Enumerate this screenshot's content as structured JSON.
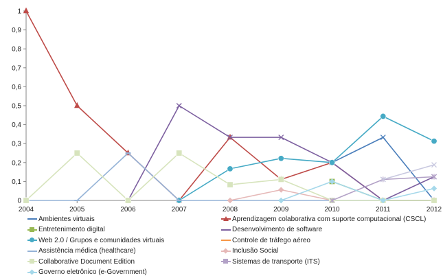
{
  "chart_data": {
    "type": "line",
    "x": [
      "2004",
      "2005",
      "2006",
      "2007",
      "2008",
      "2009",
      "2010",
      "2011",
      "2012"
    ],
    "ylim": [
      0,
      1
    ],
    "yticks": [
      "0",
      "0,1",
      "0,2",
      "0,3",
      "0,4",
      "0,5",
      "0,6",
      "0,7",
      "0,8",
      "0,9",
      "1"
    ],
    "grid": false,
    "legend_position": "bottom",
    "series": [
      {
        "name": "Ambientes virtuais",
        "color": "#4a7ebb",
        "marker": "x",
        "values": [
          null,
          null,
          null,
          null,
          null,
          null,
          0.2,
          0.333,
          0
        ]
      },
      {
        "name": "Aprendizagem colaborativa com suporte computacional (CSCL)",
        "color": "#be4b48",
        "marker": "triangle",
        "values": [
          1,
          0.5,
          0.25,
          0,
          0.333,
          0.111,
          0.2,
          0,
          0
        ]
      },
      {
        "name": "Entretenimento digital",
        "color": "#98b954",
        "marker": "square",
        "values": [
          null,
          null,
          null,
          null,
          null,
          null,
          0.1,
          0,
          0
        ]
      },
      {
        "name": "Desenvolvimento de software",
        "color": "#7d60a0",
        "marker": "x",
        "values": [
          null,
          null,
          0,
          0.5,
          0.333,
          0.333,
          0.2,
          0,
          0.125
        ]
      },
      {
        "name": "Web 2.0 / Grupos e comunidades virtuais",
        "color": "#46aac5",
        "marker": "circle",
        "values": [
          null,
          null,
          null,
          0,
          0.167,
          0.222,
          0.2,
          0.444,
          0.313
        ]
      },
      {
        "name": "Controle de tráfego aéreo",
        "color": "#f79646",
        "marker": "none",
        "values": [
          null,
          null,
          null,
          null,
          null,
          null,
          null,
          null,
          null
        ]
      },
      {
        "name": "Assistência médica (healthcare)",
        "color": "#95b3d7",
        "marker": "dash",
        "values": [
          0,
          0,
          0.25,
          0,
          0,
          0,
          0,
          0,
          0
        ]
      },
      {
        "name": "Inclusão Social",
        "color": "#e6b9b8",
        "marker": "diamond",
        "values": [
          null,
          null,
          null,
          null,
          0,
          0.056,
          0,
          null,
          null
        ]
      },
      {
        "name": "Collaborative Document Edition",
        "color": "#d7e4bd",
        "marker": "square",
        "values": [
          0,
          0.25,
          0,
          0.25,
          0.083,
          0.111,
          0,
          0,
          0
        ]
      },
      {
        "name": "Sistemas de transporte (ITS)",
        "color": "#b3a2c7",
        "marker": "star",
        "values": [
          null,
          null,
          null,
          null,
          null,
          null,
          0,
          0.111,
          0.125
        ]
      },
      {
        "name": "Governo eletrônico (e-Government)",
        "color": "#a5d8ea",
        "marker": "diamond",
        "values": [
          null,
          null,
          null,
          null,
          null,
          0,
          0.1,
          0,
          0.063
        ]
      },
      {
        "name": "",
        "color": "#c9c9e0",
        "marker": "x",
        "values": [
          null,
          null,
          null,
          null,
          null,
          null,
          null,
          0.111,
          0.188
        ]
      }
    ]
  }
}
